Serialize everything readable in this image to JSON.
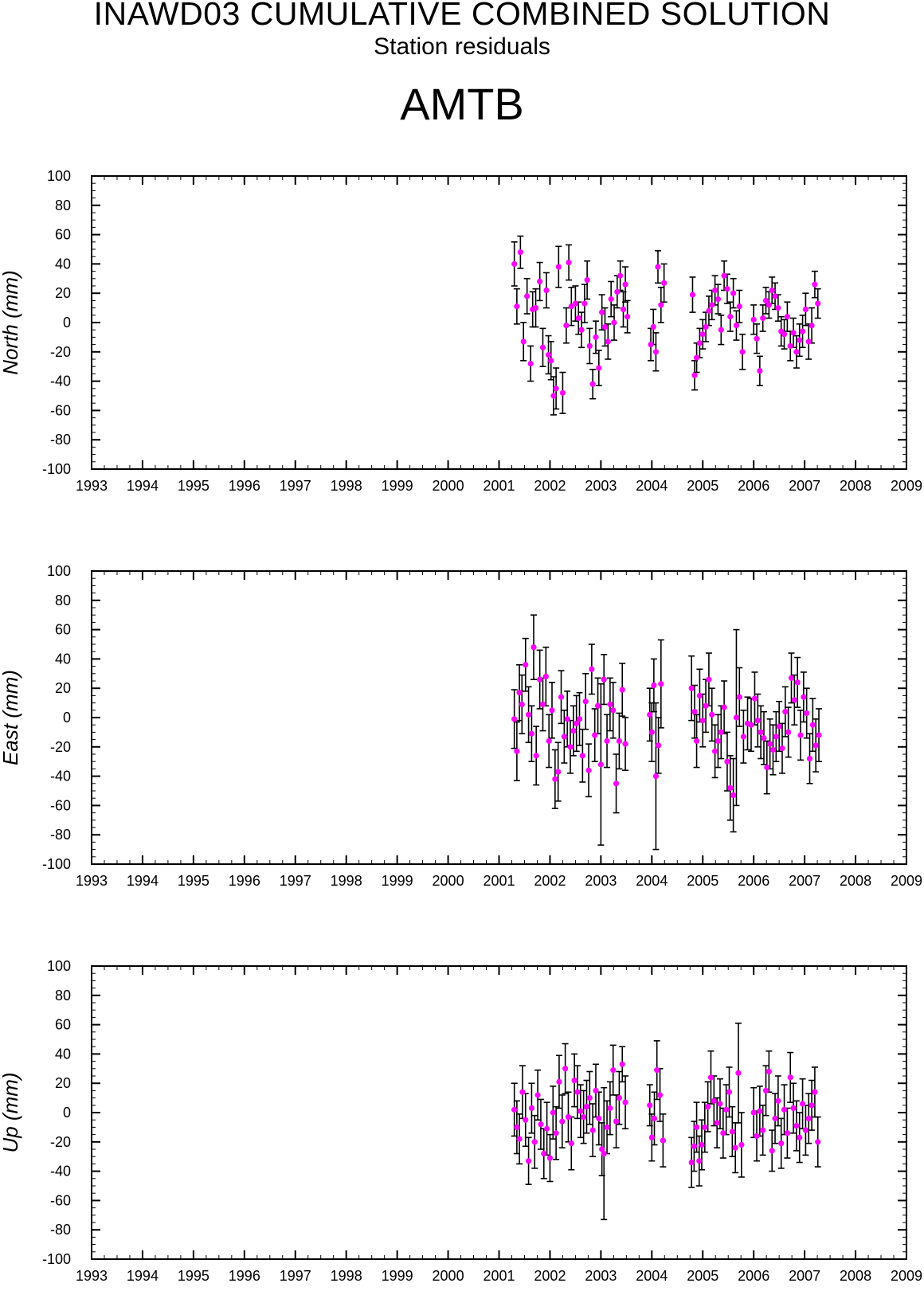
{
  "header": {
    "title": "INAWD03 CUMULATIVE COMBINED SOLUTION",
    "subtitle": "Station residuals",
    "station": "AMTB"
  },
  "colors": {
    "point": "#ff00ff",
    "errorbar": "#000000",
    "axis": "#000000"
  },
  "chart_data": [
    {
      "type": "scatter",
      "name": "north",
      "ylabel": "North (mm)",
      "xlim": [
        1993,
        2009
      ],
      "ylim": [
        -100,
        100
      ],
      "xticks": [
        "1993",
        "1994",
        "1995",
        "1996",
        "1997",
        "1998",
        "1999",
        "2000",
        "2001",
        "2002",
        "2003",
        "2004",
        "2005",
        "2006",
        "2007",
        "2008",
        "2009"
      ],
      "yticks": [
        "100",
        "80",
        "60",
        "40",
        "20",
        "0",
        "-20",
        "-40",
        "-60",
        "-80",
        "-100"
      ],
      "grid": false,
      "points": [
        [
          2001.3,
          40,
          15
        ],
        [
          2001.35,
          11,
          12
        ],
        [
          2001.42,
          48,
          11
        ],
        [
          2001.48,
          -13,
          13
        ],
        [
          2001.55,
          18,
          12
        ],
        [
          2001.62,
          -28,
          12
        ],
        [
          2001.66,
          9,
          12
        ],
        [
          2001.72,
          10,
          13
        ],
        [
          2001.8,
          28,
          13
        ],
        [
          2001.86,
          -17,
          13
        ],
        [
          2001.93,
          22,
          12
        ],
        [
          2001.97,
          -22,
          13
        ],
        [
          2002.02,
          -26,
          13
        ],
        [
          2002.07,
          -50,
          13
        ],
        [
          2002.12,
          -45,
          14
        ],
        [
          2002.17,
          38,
          14
        ],
        [
          2002.25,
          -48,
          14
        ],
        [
          2002.32,
          -2,
          12
        ],
        [
          2002.37,
          41,
          12
        ],
        [
          2002.42,
          11,
          13
        ],
        [
          2002.5,
          13,
          12
        ],
        [
          2002.56,
          3,
          11
        ],
        [
          2002.62,
          -5,
          12
        ],
        [
          2002.68,
          13,
          13
        ],
        [
          2002.73,
          29,
          13
        ],
        [
          2002.78,
          -16,
          12
        ],
        [
          2002.84,
          -42,
          10
        ],
        [
          2002.9,
          -10,
          11
        ],
        [
          2002.96,
          -31,
          12
        ],
        [
          2003.02,
          7,
          12
        ],
        [
          2003.08,
          -3,
          13
        ],
        [
          2003.14,
          -13,
          12
        ],
        [
          2003.2,
          16,
          12
        ],
        [
          2003.26,
          0,
          12
        ],
        [
          2003.32,
          21,
          11
        ],
        [
          2003.38,
          32,
          10
        ],
        [
          2003.44,
          9,
          12
        ],
        [
          2003.48,
          26,
          12
        ],
        [
          2003.52,
          4,
          11
        ],
        [
          2003.98,
          -15,
          11
        ],
        [
          2004.03,
          -3,
          12
        ],
        [
          2004.08,
          -20,
          13
        ],
        [
          2004.12,
          38,
          11
        ],
        [
          2004.18,
          12,
          12
        ],
        [
          2004.24,
          27,
          13
        ],
        [
          2004.8,
          19,
          12
        ],
        [
          2004.84,
          -36,
          10
        ],
        [
          2004.88,
          -24,
          10
        ],
        [
          2004.94,
          -14,
          10
        ],
        [
          2005.0,
          -8,
          10
        ],
        [
          2005.06,
          -3,
          10
        ],
        [
          2005.12,
          8,
          10
        ],
        [
          2005.18,
          12,
          10
        ],
        [
          2005.24,
          22,
          10
        ],
        [
          2005.3,
          16,
          10
        ],
        [
          2005.36,
          -5,
          10
        ],
        [
          2005.42,
          32,
          10
        ],
        [
          2005.48,
          23,
          10
        ],
        [
          2005.54,
          4,
          10
        ],
        [
          2005.6,
          20,
          10
        ],
        [
          2005.66,
          -2,
          10
        ],
        [
          2005.72,
          11,
          11
        ],
        [
          2005.78,
          -20,
          12
        ],
        [
          2006.0,
          2,
          10
        ],
        [
          2006.06,
          -11,
          10
        ],
        [
          2006.12,
          -33,
          10
        ],
        [
          2006.18,
          3,
          9
        ],
        [
          2006.24,
          15,
          9
        ],
        [
          2006.3,
          12,
          9
        ],
        [
          2006.36,
          22,
          9
        ],
        [
          2006.42,
          18,
          9
        ],
        [
          2006.48,
          10,
          9
        ],
        [
          2006.54,
          -6,
          10
        ],
        [
          2006.6,
          -8,
          10
        ],
        [
          2006.66,
          4,
          10
        ],
        [
          2006.72,
          -16,
          10
        ],
        [
          2006.78,
          -7,
          10
        ],
        [
          2006.84,
          -20,
          11
        ],
        [
          2006.9,
          -12,
          11
        ],
        [
          2006.96,
          -6,
          11
        ],
        [
          2007.02,
          9,
          11
        ],
        [
          2007.08,
          -13,
          12
        ],
        [
          2007.14,
          -2,
          12
        ],
        [
          2007.2,
          26,
          9
        ],
        [
          2007.26,
          13,
          10
        ]
      ]
    },
    {
      "type": "scatter",
      "name": "east",
      "ylabel": "East (mm)",
      "xlim": [
        1993,
        2009
      ],
      "ylim": [
        -100,
        100
      ],
      "xticks": [
        "1993",
        "1994",
        "1995",
        "1996",
        "1997",
        "1998",
        "1999",
        "2000",
        "2001",
        "2002",
        "2003",
        "2004",
        "2005",
        "2006",
        "2007",
        "2008",
        "2009"
      ],
      "yticks": [
        "100",
        "80",
        "60",
        "40",
        "20",
        "0",
        "-20",
        "-40",
        "-60",
        "-80",
        "-100"
      ],
      "grid": false,
      "points": [
        [
          2001.3,
          -1,
          20
        ],
        [
          2001.35,
          -23,
          20
        ],
        [
          2001.4,
          17,
          19
        ],
        [
          2001.45,
          9,
          20
        ],
        [
          2001.52,
          36,
          18
        ],
        [
          2001.58,
          2,
          19
        ],
        [
          2001.64,
          -11,
          19
        ],
        [
          2001.68,
          48,
          22
        ],
        [
          2001.73,
          -26,
          20
        ],
        [
          2001.8,
          26,
          20
        ],
        [
          2001.86,
          9,
          18
        ],
        [
          2001.92,
          28,
          20
        ],
        [
          2001.98,
          -16,
          18
        ],
        [
          2002.04,
          5,
          19
        ],
        [
          2002.1,
          -42,
          20
        ],
        [
          2002.16,
          -37,
          20
        ],
        [
          2002.22,
          14,
          18
        ],
        [
          2002.28,
          -13,
          18
        ],
        [
          2002.34,
          -1,
          19
        ],
        [
          2002.4,
          -20,
          18
        ],
        [
          2002.46,
          -9,
          17
        ],
        [
          2002.52,
          -4,
          19
        ],
        [
          2002.58,
          -1,
          18
        ],
        [
          2002.64,
          -26,
          18
        ],
        [
          2002.7,
          11,
          19
        ],
        [
          2002.76,
          -36,
          18
        ],
        [
          2002.82,
          33,
          17
        ],
        [
          2002.88,
          -12,
          18
        ],
        [
          2002.94,
          8,
          19
        ],
        [
          2003.0,
          -32,
          55
        ],
        [
          2003.06,
          26,
          17
        ],
        [
          2003.12,
          -16,
          18
        ],
        [
          2003.18,
          9,
          18
        ],
        [
          2003.24,
          5,
          19
        ],
        [
          2003.3,
          -45,
          20
        ],
        [
          2003.36,
          -16,
          19
        ],
        [
          2003.42,
          19,
          18
        ],
        [
          2003.48,
          -18,
          18
        ],
        [
          2003.96,
          2,
          18
        ],
        [
          2004.0,
          -10,
          20
        ],
        [
          2004.04,
          22,
          18
        ],
        [
          2004.08,
          -40,
          50
        ],
        [
          2004.13,
          -19,
          19
        ],
        [
          2004.18,
          23,
          30
        ],
        [
          2004.78,
          20,
          22
        ],
        [
          2004.84,
          4,
          18
        ],
        [
          2004.88,
          -16,
          18
        ],
        [
          2004.94,
          15,
          18
        ],
        [
          2005.0,
          -2,
          18
        ],
        [
          2005.06,
          8,
          18
        ],
        [
          2005.12,
          26,
          18
        ],
        [
          2005.18,
          2,
          18
        ],
        [
          2005.24,
          -23,
          18
        ],
        [
          2005.3,
          -16,
          18
        ],
        [
          2005.36,
          -10,
          18
        ],
        [
          2005.42,
          7,
          18
        ],
        [
          2005.48,
          -30,
          20
        ],
        [
          2005.54,
          -48,
          22
        ],
        [
          2005.6,
          -53,
          25
        ],
        [
          2005.66,
          0,
          60
        ],
        [
          2005.72,
          14,
          20
        ],
        [
          2005.8,
          -13,
          18
        ],
        [
          2005.88,
          -4,
          18
        ],
        [
          2005.95,
          -5,
          18
        ],
        [
          2006.02,
          13,
          18
        ],
        [
          2006.08,
          -2,
          18
        ],
        [
          2006.14,
          -10,
          18
        ],
        [
          2006.2,
          -14,
          18
        ],
        [
          2006.26,
          -34,
          18
        ],
        [
          2006.32,
          -18,
          17
        ],
        [
          2006.38,
          -22,
          17
        ],
        [
          2006.44,
          -13,
          17
        ],
        [
          2006.5,
          -6,
          17
        ],
        [
          2006.56,
          -21,
          17
        ],
        [
          2006.62,
          4,
          17
        ],
        [
          2006.68,
          -10,
          17
        ],
        [
          2006.74,
          27,
          17
        ],
        [
          2006.8,
          12,
          17
        ],
        [
          2006.86,
          24,
          17
        ],
        [
          2006.92,
          -12,
          17
        ],
        [
          2006.98,
          14,
          17
        ],
        [
          2007.04,
          3,
          17
        ],
        [
          2007.1,
          -28,
          17
        ],
        [
          2007.16,
          -5,
          18
        ],
        [
          2007.22,
          -19,
          18
        ],
        [
          2007.28,
          -12,
          18
        ]
      ]
    },
    {
      "type": "scatter",
      "name": "up",
      "ylabel": "Up (mm)",
      "xlim": [
        1993,
        2009
      ],
      "ylim": [
        -100,
        100
      ],
      "xticks": [
        "1993",
        "1994",
        "1995",
        "1996",
        "1997",
        "1998",
        "1999",
        "2000",
        "2001",
        "2002",
        "2003",
        "2004",
        "2005",
        "2006",
        "2007",
        "2008",
        "2009"
      ],
      "yticks": [
        "100",
        "80",
        "60",
        "40",
        "20",
        "0",
        "-20",
        "-40",
        "-60",
        "-80",
        "-100"
      ],
      "grid": false,
      "points": [
        [
          2001.3,
          2,
          18
        ],
        [
          2001.35,
          -10,
          18
        ],
        [
          2001.4,
          -18,
          17
        ],
        [
          2001.46,
          14,
          18
        ],
        [
          2001.52,
          -5,
          18
        ],
        [
          2001.58,
          -33,
          16
        ],
        [
          2001.64,
          3,
          17
        ],
        [
          2001.7,
          -20,
          18
        ],
        [
          2001.76,
          12,
          17
        ],
        [
          2001.82,
          -8,
          17
        ],
        [
          2001.88,
          -28,
          17
        ],
        [
          2001.94,
          -11,
          18
        ],
        [
          2002.0,
          -31,
          16
        ],
        [
          2002.06,
          0,
          18
        ],
        [
          2002.12,
          -14,
          18
        ],
        [
          2002.18,
          21,
          18
        ],
        [
          2002.24,
          -6,
          18
        ],
        [
          2002.3,
          30,
          17
        ],
        [
          2002.36,
          -3,
          17
        ],
        [
          2002.42,
          -21,
          18
        ],
        [
          2002.48,
          22,
          18
        ],
        [
          2002.54,
          14,
          18
        ],
        [
          2002.6,
          1,
          18
        ],
        [
          2002.66,
          -3,
          18
        ],
        [
          2002.72,
          4,
          18
        ],
        [
          2002.78,
          10,
          18
        ],
        [
          2002.84,
          -12,
          18
        ],
        [
          2002.9,
          15,
          18
        ],
        [
          2002.96,
          -4,
          18
        ],
        [
          2003.02,
          -25,
          18
        ],
        [
          2003.06,
          -28,
          45
        ],
        [
          2003.12,
          -10,
          18
        ],
        [
          2003.18,
          3,
          18
        ],
        [
          2003.24,
          29,
          17
        ],
        [
          2003.3,
          -6,
          18
        ],
        [
          2003.36,
          10,
          18
        ],
        [
          2003.42,
          33,
          12
        ],
        [
          2003.48,
          7,
          18
        ],
        [
          2003.96,
          5,
          14
        ],
        [
          2004.0,
          -17,
          16
        ],
        [
          2004.05,
          -4,
          18
        ],
        [
          2004.1,
          29,
          20
        ],
        [
          2004.16,
          12,
          18
        ],
        [
          2004.22,
          -19,
          18
        ],
        [
          2004.78,
          -34,
          17
        ],
        [
          2004.83,
          -23,
          17
        ],
        [
          2004.88,
          -10,
          17
        ],
        [
          2004.93,
          -33,
          17
        ],
        [
          2004.98,
          -22,
          17
        ],
        [
          2005.04,
          -10,
          17
        ],
        [
          2005.1,
          4,
          17
        ],
        [
          2005.16,
          24,
          18
        ],
        [
          2005.22,
          8,
          17
        ],
        [
          2005.28,
          -7,
          17
        ],
        [
          2005.34,
          6,
          17
        ],
        [
          2005.4,
          -14,
          17
        ],
        [
          2005.46,
          2,
          17
        ],
        [
          2005.52,
          14,
          17
        ],
        [
          2005.58,
          -13,
          17
        ],
        [
          2005.64,
          -24,
          17
        ],
        [
          2005.7,
          27,
          34
        ],
        [
          2005.76,
          -22,
          22
        ],
        [
          2006.0,
          0,
          17
        ],
        [
          2006.06,
          -16,
          17
        ],
        [
          2006.12,
          1,
          17
        ],
        [
          2006.18,
          -12,
          17
        ],
        [
          2006.24,
          15,
          17
        ],
        [
          2006.3,
          28,
          14
        ],
        [
          2006.36,
          -26,
          14
        ],
        [
          2006.42,
          -4,
          17
        ],
        [
          2006.48,
          8,
          17
        ],
        [
          2006.54,
          -21,
          17
        ],
        [
          2006.6,
          2,
          17
        ],
        [
          2006.66,
          -14,
          17
        ],
        [
          2006.72,
          24,
          17
        ],
        [
          2006.78,
          3,
          17
        ],
        [
          2006.84,
          -9,
          17
        ],
        [
          2006.9,
          -17,
          17
        ],
        [
          2006.96,
          6,
          17
        ],
        [
          2007.02,
          -12,
          17
        ],
        [
          2007.08,
          -4,
          17
        ],
        [
          2007.14,
          5,
          17
        ],
        [
          2007.2,
          14,
          17
        ],
        [
          2007.26,
          -20,
          17
        ]
      ]
    }
  ]
}
